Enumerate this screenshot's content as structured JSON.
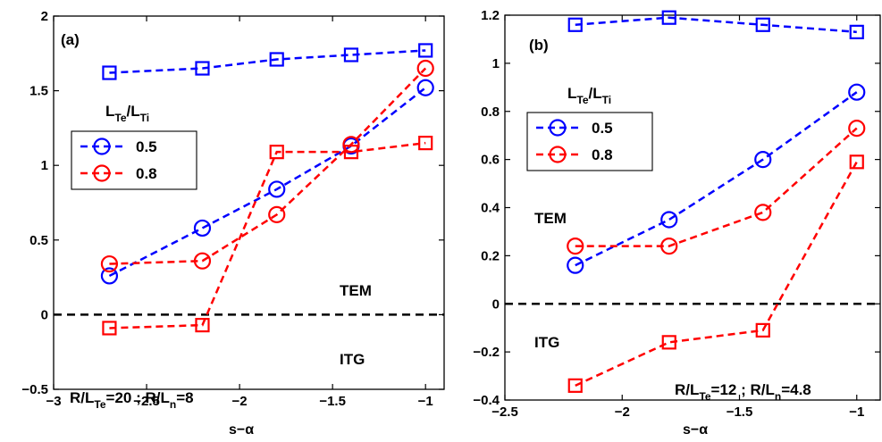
{
  "chart_data": [
    {
      "type": "line",
      "panel_label": "(a)",
      "xlabel": "s−α",
      "xlim": [
        -3,
        -0.9
      ],
      "ylim": [
        -0.5,
        2
      ],
      "xticks": [
        -3,
        -2.5,
        -2,
        -1.5,
        -1
      ],
      "xtick_labels": [
        "−3",
        "−2.5",
        "−2",
        "−1.5",
        "−1"
      ],
      "yticks": [
        -0.5,
        0,
        0.5,
        1,
        1.5,
        2
      ],
      "ytick_labels": [
        "−0.5",
        "0",
        "0.5",
        "1",
        "1.5",
        "2"
      ],
      "zero_line": 0,
      "legend_title": {
        "main": "L",
        "sub1": "Te",
        "mid": "/L",
        "sub2": "Ti"
      },
      "legend_placement": "middle-left",
      "series": [
        {
          "name": "0.5",
          "color": "#0000ff",
          "marker": "circle",
          "in_legend": true,
          "x": [
            -2.7,
            -2.2,
            -1.8,
            -1.4,
            -1.0
          ],
          "y": [
            0.26,
            0.58,
            0.84,
            1.13,
            1.52
          ]
        },
        {
          "name": "0.8",
          "color": "#ff0000",
          "marker": "circle",
          "in_legend": true,
          "x": [
            -2.7,
            -2.2,
            -1.8,
            -1.4,
            -1.0
          ],
          "y": [
            0.34,
            0.36,
            0.67,
            1.14,
            1.65
          ]
        },
        {
          "color": "#0000ff",
          "marker": "square",
          "in_legend": false,
          "x": [
            -2.7,
            -2.2,
            -1.8,
            -1.4,
            -1.0
          ],
          "y": [
            1.62,
            1.65,
            1.71,
            1.74,
            1.77
          ]
        },
        {
          "color": "#ff0000",
          "marker": "square",
          "in_legend": false,
          "x": [
            -2.7,
            -2.2,
            -1.8,
            -1.4,
            -1.0
          ],
          "y": [
            -0.09,
            -0.07,
            1.09,
            1.09,
            1.15
          ]
        }
      ],
      "annotations": [
        {
          "text": "TEM",
          "x": -1.67,
          "y": 0.33
        },
        {
          "text": "ITG",
          "x": -1.67,
          "y": -0.43
        },
        {
          "parts": [
            "R/L",
            "Te",
            "=20 ; R/L",
            "n",
            "=8"
          ],
          "x": -2.88,
          "y": -0.57
        }
      ]
    },
    {
      "type": "line",
      "panel_label": "(b)",
      "xlabel": "s−α",
      "xlim": [
        -2.5,
        -0.9
      ],
      "ylim": [
        -0.4,
        1.2
      ],
      "xticks": [
        -2.5,
        -2,
        -1.5,
        -1
      ],
      "xtick_labels": [
        "−2.5",
        "−2",
        "−1.5",
        "−1"
      ],
      "yticks": [
        -0.4,
        -0.2,
        0,
        0.2,
        0.4,
        0.6,
        0.8,
        1,
        1.2
      ],
      "ytick_labels": [
        "−0.4",
        "−0.2",
        "0",
        "0.2",
        "0.4",
        "0.6",
        "0.8",
        "1",
        "1.2"
      ],
      "zero_line": 0,
      "legend_title": {
        "main": "L",
        "sub1": "Te",
        "mid": "/L",
        "sub2": "Ti"
      },
      "legend_placement": "upper-left",
      "series": [
        {
          "name": "0.5",
          "color": "#0000ff",
          "marker": "circle",
          "in_legend": true,
          "x": [
            -2.2,
            -1.8,
            -1.4,
            -1.0
          ],
          "y": [
            0.16,
            0.35,
            0.6,
            0.88
          ]
        },
        {
          "name": "0.8",
          "color": "#ff0000",
          "marker": "circle",
          "in_legend": true,
          "x": [
            -2.2,
            -1.8,
            -1.4,
            -1.0
          ],
          "y": [
            0.24,
            0.24,
            0.38,
            0.73
          ]
        },
        {
          "color": "#0000ff",
          "marker": "square",
          "in_legend": false,
          "x": [
            -2.2,
            -1.8,
            -1.4,
            -1.0
          ],
          "y": [
            1.16,
            1.19,
            1.16,
            1.13
          ]
        },
        {
          "color": "#ff0000",
          "marker": "square",
          "in_legend": false,
          "x": [
            -2.2,
            -1.8,
            -1.4,
            -1.0
          ],
          "y": [
            -0.34,
            -0.16,
            -0.11,
            0.59
          ]
        }
      ],
      "annotations": [
        {
          "text": "TEM",
          "x": -2.44,
          "y": 0.54
        },
        {
          "text": "ITG",
          "x": -2.44,
          "y": -0.19
        },
        {
          "parts": [
            "R/L",
            "Te",
            "=12 ; R/L",
            "n",
            "=4.8"
          ],
          "x": -1.68,
          "y": -0.55
        }
      ]
    }
  ]
}
